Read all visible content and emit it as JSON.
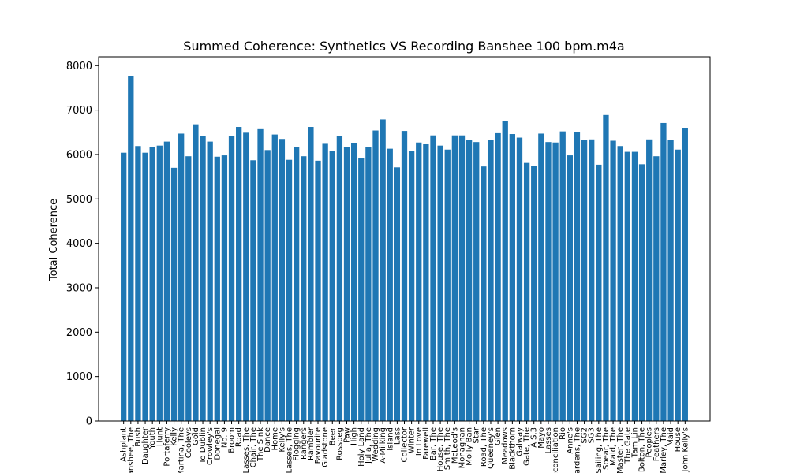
{
  "chart_data": {
    "type": "bar",
    "title": "Summed Coherence: Synthetics VS Recording Banshee 100 bpm.m4a",
    "xlabel": "",
    "ylabel": "Total Coherence",
    "ylim": [
      0,
      8200
    ],
    "yticks": [
      0,
      1000,
      2000,
      3000,
      4000,
      5000,
      6000,
      7000,
      8000
    ],
    "grid": false,
    "color": "#1f77b4",
    "categories": [
      "Ashplant",
      "Banshee, The",
      "Bush",
      "Daughter",
      "Youth",
      "Hunt",
      "Portaferry",
      "Kelly",
      "Martina, The",
      "Cooleys",
      "Gold",
      "To Dublin",
      "Crowley's",
      "Donegal",
      "No. 9",
      "Broom",
      "Road",
      "Lasses, The",
      "Chair, The",
      "The Sink",
      "Dance",
      "Home",
      "Kelly's",
      "Lasses, The",
      "Flogging",
      "Rangers",
      "Rambler",
      "Favourite",
      "Gladstone",
      "Beer",
      "Rossbeg",
      "Paw",
      "High",
      "Holy Land",
      "Julia, The",
      "Wedding",
      "A-Milking",
      "Island",
      "Lass",
      "Collector",
      "Winter",
      "In Love",
      "Farewell",
      "Bar, The",
      "House, The",
      "Smith, The",
      "McLeod's",
      "Monaghan",
      "Molly Ban",
      "Star",
      "Road, The",
      "Queeney's",
      "Glen",
      "Meadows",
      "Blackthorn",
      "Galway",
      "Gate, The",
      "A.S.3",
      "Mayo",
      "Lasses",
      "Reconciliation",
      "Rio",
      "Anne's",
      "Gardens, The",
      "SG2",
      "SG3",
      "Sailing, The",
      "Spear, The",
      "Maid, The",
      "Master, The",
      "The Gate",
      "Tam Lin",
      "Bolton, The",
      "Peoples",
      "Feathers",
      "Marley, The",
      "Maid",
      "House",
      "John Kelly's"
    ],
    "values": [
      6040,
      7770,
      6190,
      6040,
      6170,
      6200,
      6290,
      5700,
      6470,
      5960,
      6680,
      6420,
      6290,
      5950,
      5980,
      6410,
      6620,
      6490,
      5870,
      6570,
      6100,
      6450,
      6350,
      5880,
      6160,
      5960,
      6620,
      5860,
      6240,
      6080,
      6410,
      6170,
      6260,
      5910,
      6160,
      6540,
      6790,
      6130,
      5710,
      6530,
      6070,
      6270,
      6230,
      6430,
      6200,
      6110,
      6430,
      6430,
      6320,
      6280,
      5730,
      6320,
      6480,
      6750,
      6460,
      6380,
      5810,
      5750,
      6470,
      6280,
      6270,
      6520,
      5980,
      6500,
      6330,
      6340,
      5770,
      6890,
      6310,
      6190,
      6060,
      6060,
      5780,
      6340,
      5960,
      6710,
      6320,
      6110,
      6590
    ]
  }
}
